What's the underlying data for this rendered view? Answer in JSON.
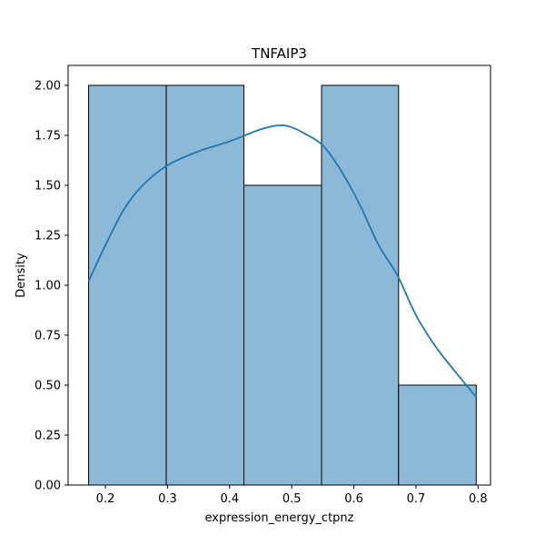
{
  "chart_data": {
    "type": "bar",
    "title": "TNFAIP3",
    "xlabel": "expression_energy_ctpnz",
    "ylabel": "Density",
    "xlim": [
      0.14,
      0.82
    ],
    "ylim": [
      0.0,
      2.1
    ],
    "xticks": [
      0.2,
      0.3,
      0.4,
      0.5,
      0.6,
      0.7,
      0.8
    ],
    "yticks": [
      0.0,
      0.25,
      0.5,
      0.75,
      1.0,
      1.25,
      1.5,
      1.75,
      2.0
    ],
    "xtick_labels": [
      "0.2",
      "0.3",
      "0.4",
      "0.5",
      "0.6",
      "0.7",
      "0.8"
    ],
    "ytick_labels": [
      "0.00",
      "0.25",
      "0.50",
      "0.75",
      "1.00",
      "1.25",
      "1.50",
      "1.75",
      "2.00"
    ],
    "bins": [
      {
        "x0": 0.173,
        "x1": 0.298,
        "value": 2.0
      },
      {
        "x0": 0.298,
        "x1": 0.423,
        "value": 2.0
      },
      {
        "x0": 0.423,
        "x1": 0.548,
        "value": 1.5
      },
      {
        "x0": 0.548,
        "x1": 0.672,
        "value": 2.0
      },
      {
        "x0": 0.672,
        "x1": 0.797,
        "value": 0.5
      }
    ],
    "kde": {
      "x": [
        0.173,
        0.2,
        0.23,
        0.26,
        0.3,
        0.35,
        0.4,
        0.45,
        0.48,
        0.5,
        0.52,
        0.55,
        0.58,
        0.61,
        0.64,
        0.67,
        0.7,
        0.73,
        0.76,
        0.797
      ],
      "y": [
        1.02,
        1.2,
        1.38,
        1.5,
        1.6,
        1.67,
        1.72,
        1.78,
        1.8,
        1.79,
        1.76,
        1.7,
        1.57,
        1.4,
        1.2,
        1.05,
        0.85,
        0.7,
        0.58,
        0.44
      ]
    },
    "colors": {
      "bar_fill": "#8db9d9",
      "bar_edge": "#000000",
      "kde_line": "#1f77b4"
    },
    "grid": false,
    "legend": "none"
  }
}
